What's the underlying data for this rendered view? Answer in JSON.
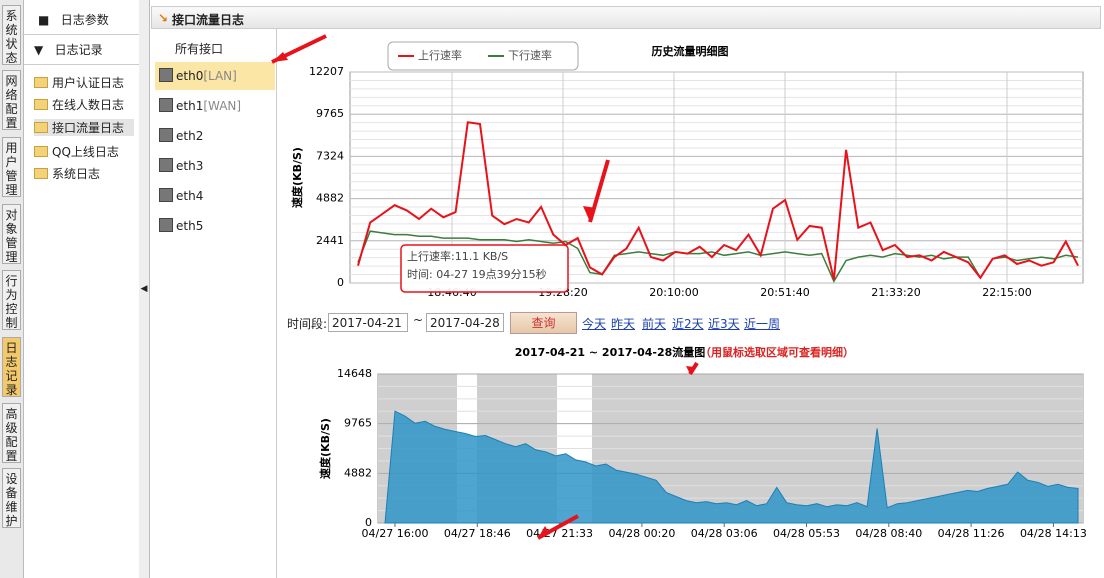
{
  "sidebar_tabs": [
    "系统状态",
    "网络配置",
    "用户管理",
    "对象管理",
    "行为控制",
    "日志记录",
    "高级配置",
    "设备维护"
  ],
  "menu": {
    "top": [
      "日志参数",
      "日志记录"
    ],
    "logs": [
      "用户认证日志",
      "在线人数日志",
      "接口流量日志",
      "QQ上线日志",
      "系统日志"
    ]
  },
  "panel_title": "接口流量日志",
  "interfaces": {
    "header": "所有接口",
    "items": [
      {
        "name": "eth0",
        "tag": "[LAN]"
      },
      {
        "name": "eth1",
        "tag": "[WAN]"
      },
      {
        "name": "eth2"
      },
      {
        "name": "eth3"
      },
      {
        "name": "eth4"
      },
      {
        "name": "eth5"
      }
    ]
  },
  "detail_chart": {
    "type": "line",
    "title": "历史流量明细图",
    "ylabel": "速度(KB/S)",
    "ylim": [
      0,
      12207
    ],
    "yticks": [
      0,
      2441,
      4882,
      7324,
      9765,
      12207
    ],
    "xticks": [
      "18:46:40",
      "19:28:20",
      "20:10:00",
      "20:51:40",
      "21:33:20",
      "22:15:00"
    ],
    "series": [
      {
        "name": "上行速率",
        "color": "#e8121a",
        "values": [
          1000,
          3500,
          4000,
          4500,
          4200,
          3700,
          4300,
          3800,
          4100,
          9300,
          9200,
          3900,
          3400,
          3700,
          3500,
          4400,
          2800,
          2200,
          2600,
          900,
          500,
          1500,
          2000,
          3200,
          1500,
          1300,
          1800,
          1700,
          2100,
          1500,
          2200,
          1900,
          2800,
          1600,
          4300,
          4800,
          2500,
          3300,
          3200,
          200,
          7700,
          3200,
          3500,
          1900,
          2200,
          1500,
          1600,
          1300,
          1800,
          1500,
          1200,
          300,
          1400,
          1600,
          1100,
          1300,
          1000,
          1200,
          2400,
          1000
        ]
      },
      {
        "name": "下行速率",
        "color": "#3c7d3c",
        "values": [
          1200,
          3000,
          2900,
          2800,
          2800,
          2700,
          2700,
          2600,
          2600,
          2600,
          2500,
          2500,
          2500,
          2400,
          2500,
          2400,
          2300,
          2400,
          2000,
          600,
          500,
          1600,
          1700,
          1800,
          1700,
          1600,
          1800,
          1700,
          1700,
          1800,
          1600,
          1700,
          1800,
          1600,
          1700,
          1800,
          1700,
          1600,
          1700,
          100,
          1300,
          1500,
          1600,
          1500,
          1700,
          1600,
          1500,
          1600,
          1400,
          1500,
          1500,
          300,
          1400,
          1500,
          1300,
          1400,
          1500,
          1400,
          1600,
          1500
        ]
      }
    ],
    "tooltip": [
      "上行速率:11.1 KB/S",
      "时间: 04-27 19点39分15秒"
    ]
  },
  "query": {
    "label": "时间段:",
    "from": "2017-04-21",
    "sep": "~",
    "to": "2017-04-28",
    "button": "查询",
    "shortcuts": [
      "今天",
      "昨天",
      "前天",
      "近2天",
      "近3天",
      "近一周"
    ]
  },
  "overview_chart": {
    "type": "area",
    "title": "2017-04-21 ~ 2017-04-28流量图",
    "hint": "（用鼠标选取区域可查看明细）",
    "ylabel": "速度(KB/S)",
    "ylim": [
      0,
      14648
    ],
    "yticks": [
      0,
      4882,
      9765,
      14648
    ],
    "xticks": [
      "04/27 16:00",
      "04/27 18:46",
      "04/27 21:33",
      "04/28 00:20",
      "04/28 03:06",
      "04/28 05:53",
      "04/28 08:40",
      "04/28 11:26",
      "04/28 14:13"
    ],
    "color": "#2f95c8",
    "values": [
      0,
      11000,
      10500,
      9800,
      10000,
      9500,
      9200,
      9000,
      8800,
      8500,
      8600,
      8200,
      7800,
      7500,
      7800,
      7200,
      7000,
      6600,
      6800,
      6200,
      6000,
      5600,
      5800,
      5200,
      5000,
      4800,
      4500,
      4200,
      3000,
      2600,
      2200,
      2000,
      2100,
      1900,
      2000,
      1800,
      2200,
      1700,
      1900,
      3500,
      2000,
      1800,
      1700,
      1900,
      1600,
      1800,
      1700,
      2000,
      1600,
      9300,
      1500,
      1900,
      2000,
      2200,
      2400,
      2600,
      2800,
      3000,
      3200,
      3100,
      3400,
      3600,
      3800,
      5000,
      4200,
      4000,
      3600,
      3800,
      3500,
      3400
    ]
  }
}
